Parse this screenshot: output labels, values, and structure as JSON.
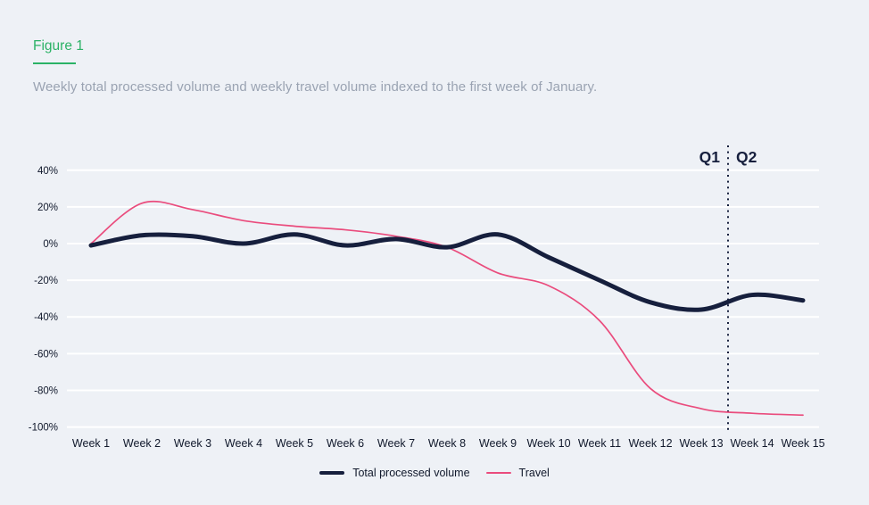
{
  "figure": {
    "label": "Figure 1",
    "subtitle": "Weekly total processed volume and weekly travel volume indexed to the first week of January."
  },
  "colors": {
    "background": "#eef1f6",
    "gridline": "#ffffff",
    "accent_green": "#2bb266",
    "subtitle_gray": "#9aa3b2",
    "navy": "#161f3d",
    "pink": "#ea4c7d"
  },
  "chart_data": {
    "type": "line",
    "title": "Figure 1",
    "subtitle": "Weekly total processed volume and weekly travel volume indexed to the first week of January.",
    "categories": [
      "Week 1",
      "Week 2",
      "Week 3",
      "Week 4",
      "Week 5",
      "Week 6",
      "Week 7",
      "Week 8",
      "Week 9",
      "Week 10",
      "Week 11",
      "Week 12",
      "Week 13",
      "Week 14",
      "Week 15"
    ],
    "series": [
      {
        "name": "Total processed volume",
        "color": "#161f3d",
        "values": [
          -1,
          4.5,
          4,
          0,
          5,
          -1,
          2.5,
          -2,
          5,
          -7.5,
          -20,
          -32,
          -36,
          -28,
          -31
        ]
      },
      {
        "name": "Travel",
        "color": "#ea4c7d",
        "values": [
          0,
          22,
          18.5,
          12.5,
          9.5,
          7.5,
          4,
          -2,
          -16,
          -23,
          -42,
          -79,
          -90,
          -92.5,
          -93.5
        ]
      }
    ],
    "y_ticks": [
      {
        "label": "40%",
        "value": 40
      },
      {
        "label": "20%",
        "value": 20
      },
      {
        "label": "0%",
        "value": 0
      },
      {
        "label": "-20%",
        "value": -20
      },
      {
        "label": "-40%",
        "value": -40
      },
      {
        "label": "-60%",
        "value": -60
      },
      {
        "label": "-80%",
        "value": -80
      },
      {
        "label": "-100%",
        "value": -100
      }
    ],
    "ylim": [
      -100,
      40
    ],
    "grid": true,
    "legend_position": "bottom",
    "annotations": {
      "quarter_divider": {
        "after_week": 13.5,
        "left_label": "Q1",
        "right_label": "Q2"
      }
    }
  },
  "legend": {
    "items": [
      {
        "label": "Total processed volume"
      },
      {
        "label": "Travel"
      }
    ]
  }
}
